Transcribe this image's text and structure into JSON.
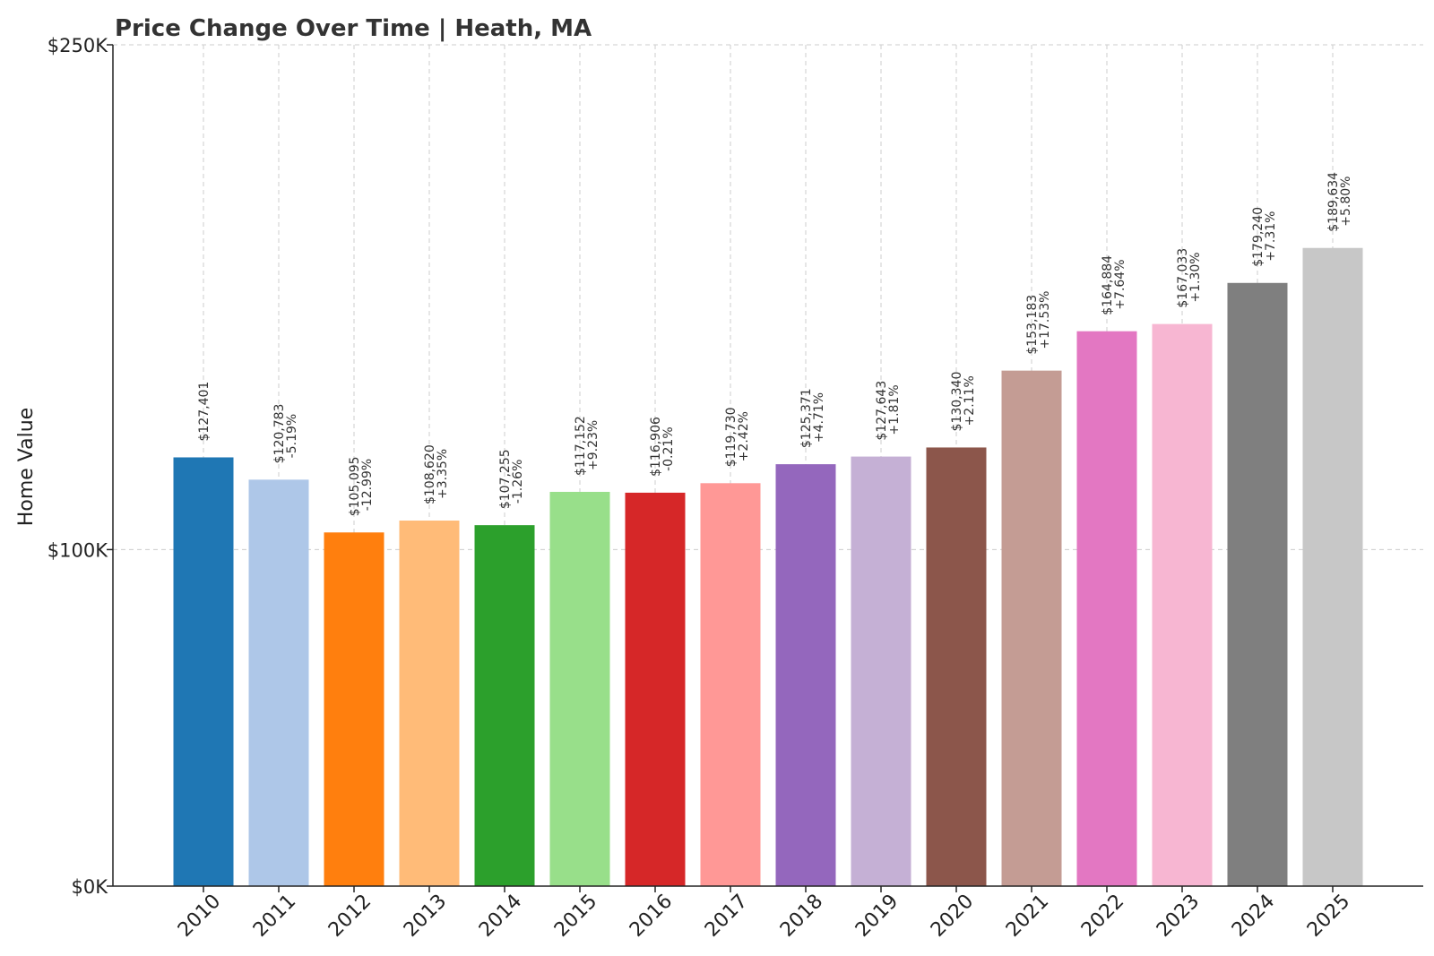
{
  "chart_data": {
    "type": "bar",
    "title": "Price Change Over Time | Heath, MA",
    "xlabel": "",
    "ylabel": "Home Value",
    "ylim": [
      0,
      250000
    ],
    "yticks": [
      {
        "value": 0,
        "label": "$0K"
      },
      {
        "value": 100000,
        "label": "$100K"
      },
      {
        "value": 250000,
        "label": "$250K"
      }
    ],
    "grid": true,
    "categories": [
      "2010",
      "2011",
      "2012",
      "2013",
      "2014",
      "2015",
      "2016",
      "2017",
      "2018",
      "2019",
      "2020",
      "2021",
      "2022",
      "2023",
      "2024",
      "2025"
    ],
    "values": [
      127401,
      120783,
      105095,
      108620,
      107255,
      117152,
      116906,
      119730,
      125371,
      127643,
      130340,
      153183,
      164884,
      167033,
      179240,
      189634
    ],
    "value_labels": [
      "$127,401",
      "$120,783",
      "$105,095",
      "$108,620",
      "$107,255",
      "$117,152",
      "$116,906",
      "$119,730",
      "$125,371",
      "$127,643",
      "$130,340",
      "$153,183",
      "$164,884",
      "$167,033",
      "$179,240",
      "$189,634"
    ],
    "change_labels": [
      "",
      "-5.19%",
      "-12.99%",
      "+3.35%",
      "-1.26%",
      "+9.23%",
      "-0.21%",
      "+2.42%",
      "+4.71%",
      "+1.81%",
      "+2.11%",
      "+17.53%",
      "+7.64%",
      "+1.30%",
      "+7.31%",
      "+5.80%"
    ],
    "colors": [
      "#1f77b4",
      "#aec7e8",
      "#ff7f0e",
      "#ffbb78",
      "#2ca02c",
      "#98df8a",
      "#d62728",
      "#ff9896",
      "#9467bd",
      "#c5b0d5",
      "#8c564b",
      "#c49c94",
      "#e377c2",
      "#f7b6d2",
      "#7f7f7f",
      "#c7c7c7"
    ]
  }
}
